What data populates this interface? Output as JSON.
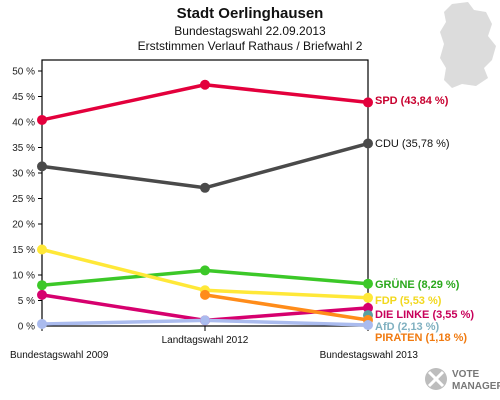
{
  "chart_data": {
    "type": "line",
    "title": "Stadt Oerlinghausen",
    "subtitle_1": "Bundestagswahl 22.09.2013",
    "subtitle_2": "Erststimmen Verlauf Rathaus / Briefwahl 2",
    "categories": [
      "Bundestagswahl 2009",
      "Landtagswahl 2012",
      "Bundestagswahl 2013"
    ],
    "ylim": [
      0,
      50
    ],
    "yticks": [
      "0 %",
      "5 %",
      "10 %",
      "15 %",
      "20 %",
      "25 %",
      "30 %",
      "35 %",
      "40 %",
      "45 %",
      "50 %"
    ],
    "grid": false,
    "series": [
      {
        "key": "cdu",
        "label": "CDU (35,78 %)",
        "color": "#4a4a4a",
        "label_color": "#111111",
        "values": [
          31.3,
          27.1,
          35.78
        ]
      },
      {
        "key": "spd",
        "label": "SPD (43,84 %)",
        "color": "#e3003c",
        "label_color": "#c8002f",
        "values": [
          40.4,
          47.3,
          43.84
        ]
      },
      {
        "key": "gruene",
        "label": "GRÜNE (8,29 %)",
        "color": "#3cc828",
        "label_color": "#2aa81c",
        "values": [
          8.0,
          10.9,
          8.29
        ]
      },
      {
        "key": "fdp",
        "label": "FDP (5,53 %)",
        "color": "#ffe838",
        "label_color": "#f2d81e",
        "values": [
          15.0,
          7.0,
          5.53
        ]
      },
      {
        "key": "linke",
        "label": "DIE LINKE (3,55 %)",
        "color": "#d6006e",
        "label_color": "#c8005a",
        "values": [
          6.1,
          1.1,
          3.55
        ]
      },
      {
        "key": "afd",
        "label": "AfD (2,13 %)",
        "color": "#5aa0a0",
        "label_color": "#7fb0c0",
        "values": [
          null,
          null,
          2.13
        ]
      },
      {
        "key": "piraten",
        "label": "PIRATEN (1,18 %)",
        "color": "#ff8c1a",
        "label_color": "#f07a10",
        "values": [
          null,
          6.1,
          1.18
        ]
      },
      {
        "key": "sonstige",
        "label": "",
        "color": "#aabbee",
        "label_color": "#aabbee",
        "values": [
          0.4,
          1.1,
          0.2
        ]
      }
    ]
  },
  "logo": {
    "line1": "VOTE",
    "line2": "MANAGER"
  }
}
